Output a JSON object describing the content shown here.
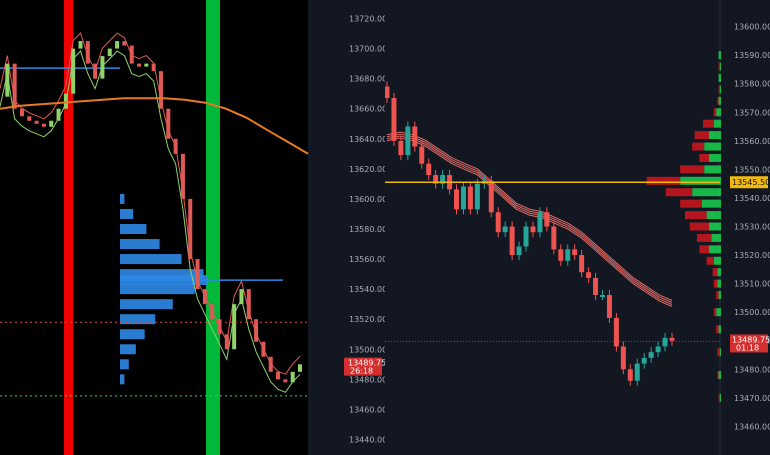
{
  "chart_data": [
    {
      "type": "line",
      "title": "",
      "y_ticks": [
        13720,
        13700,
        13680,
        13660,
        13640,
        13620,
        13600,
        13580,
        13560,
        13540,
        13520,
        13500,
        13480,
        13460,
        13440
      ],
      "ylim": [
        13433,
        13727
      ],
      "price": [
        13668,
        13690,
        13660,
        13655,
        13652,
        13650,
        13648,
        13652,
        13660,
        13670,
        13700,
        13705,
        13690,
        13680,
        13695,
        13700,
        13705,
        13702,
        13690,
        13688,
        13690,
        13685,
        13660,
        13640,
        13630,
        13600,
        13560,
        13540,
        13530,
        13520,
        13510,
        13500,
        13530,
        13540,
        13520,
        13505,
        13495,
        13485,
        13480,
        13478,
        13485,
        13490
      ],
      "moving_average": [
        13660,
        13662,
        13663,
        13664,
        13665,
        13666,
        13667,
        13667,
        13667,
        13666,
        13664,
        13660,
        13654,
        13646,
        13638,
        13630
      ],
      "poc_price": 13546,
      "value_area_high": 13687,
      "upper_band": 13518,
      "lower_band": 13469,
      "current_price": {
        "value": "13489.75",
        "timer": "26:18"
      },
      "profile": [
        {
          "price": 13600,
          "volume": 5
        },
        {
          "price": 13590,
          "volume": 15
        },
        {
          "price": 13580,
          "volume": 30
        },
        {
          "price": 13570,
          "volume": 45
        },
        {
          "price": 13560,
          "volume": 70
        },
        {
          "price": 13550,
          "volume": 95
        },
        {
          "price": 13546,
          "volume": 100
        },
        {
          "price": 13540,
          "volume": 85
        },
        {
          "price": 13530,
          "volume": 60
        },
        {
          "price": 13520,
          "volume": 40
        },
        {
          "price": 13510,
          "volume": 28
        },
        {
          "price": 13500,
          "volume": 18
        },
        {
          "price": 13490,
          "volume": 10
        },
        {
          "price": 13480,
          "volume": 5
        }
      ],
      "colors": {
        "red_bar": "#f00000",
        "green_bar": "#00b83a",
        "ma": "#e67a22",
        "blue": "#2d8ae6",
        "envelope_red": "#e05a55",
        "envelope_green": "#8fd36a"
      }
    },
    {
      "type": "line",
      "title": "",
      "y_ticks": [
        13600,
        13590,
        13580,
        13570,
        13560,
        13550,
        13540,
        13530,
        13520,
        13510,
        13500,
        13490,
        13480,
        13470,
        13460
      ],
      "ylim": [
        13457,
        13603
      ],
      "candles_close": [
        13575,
        13560,
        13555,
        13565,
        13558,
        13552,
        13548,
        13545,
        13548,
        13543,
        13536,
        13544,
        13536,
        13545,
        13546,
        13535,
        13528,
        13530,
        13520,
        13523,
        13530,
        13528,
        13535,
        13530,
        13522,
        13518,
        13522,
        13520,
        13514,
        13512,
        13506,
        13506,
        13498,
        13488,
        13480,
        13476,
        13482,
        13484,
        13486,
        13488,
        13491,
        13490
      ],
      "ema_band": [
        13560,
        13561,
        13560,
        13558,
        13555,
        13552,
        13550,
        13548,
        13544,
        13540,
        13536,
        13534,
        13533,
        13531,
        13529,
        13526,
        13522,
        13518,
        13514,
        13510,
        13507,
        13504,
        13502
      ],
      "level_price": {
        "value": "13545.50",
        "price": 13545.5,
        "color": "#f0b90b"
      },
      "current_price": {
        "value": "13489.75",
        "timer": "01:18",
        "price": 13489.75
      },
      "volume_profile": [
        {
          "price": 13590,
          "buy": 2,
          "sell": 0
        },
        {
          "price": 13586,
          "buy": 1,
          "sell": 1
        },
        {
          "price": 13582,
          "buy": 2,
          "sell": 0
        },
        {
          "price": 13578,
          "buy": 1,
          "sell": 1
        },
        {
          "price": 13574,
          "buy": 2,
          "sell": 1
        },
        {
          "price": 13570,
          "buy": 4,
          "sell": 2
        },
        {
          "price": 13566,
          "buy": 6,
          "sell": 9
        },
        {
          "price": 13562,
          "buy": 10,
          "sell": 12
        },
        {
          "price": 13558,
          "buy": 14,
          "sell": 10
        },
        {
          "price": 13554,
          "buy": 10,
          "sell": 8
        },
        {
          "price": 13550,
          "buy": 14,
          "sell": 20
        },
        {
          "price": 13546,
          "buy": 34,
          "sell": 28
        },
        {
          "price": 13542,
          "buy": 24,
          "sell": 22
        },
        {
          "price": 13538,
          "buy": 16,
          "sell": 18
        },
        {
          "price": 13534,
          "buy": 12,
          "sell": 18
        },
        {
          "price": 13530,
          "buy": 10,
          "sell": 16
        },
        {
          "price": 13526,
          "buy": 8,
          "sell": 12
        },
        {
          "price": 13522,
          "buy": 10,
          "sell": 8
        },
        {
          "price": 13518,
          "buy": 6,
          "sell": 6
        },
        {
          "price": 13514,
          "buy": 3,
          "sell": 4
        },
        {
          "price": 13510,
          "buy": 3,
          "sell": 3
        },
        {
          "price": 13506,
          "buy": 2,
          "sell": 2
        },
        {
          "price": 13500,
          "buy": 4,
          "sell": 2
        },
        {
          "price": 13494,
          "buy": 2,
          "sell": 2
        },
        {
          "price": 13486,
          "buy": 1,
          "sell": 2
        },
        {
          "price": 13478,
          "buy": 2,
          "sell": 1
        },
        {
          "price": 13470,
          "buy": 1,
          "sell": 1
        }
      ],
      "colors": {
        "up": "#26a69a",
        "down": "#ef5350",
        "band": "#e06a64",
        "buy": "#18b848",
        "sell": "#b3161c"
      }
    }
  ]
}
